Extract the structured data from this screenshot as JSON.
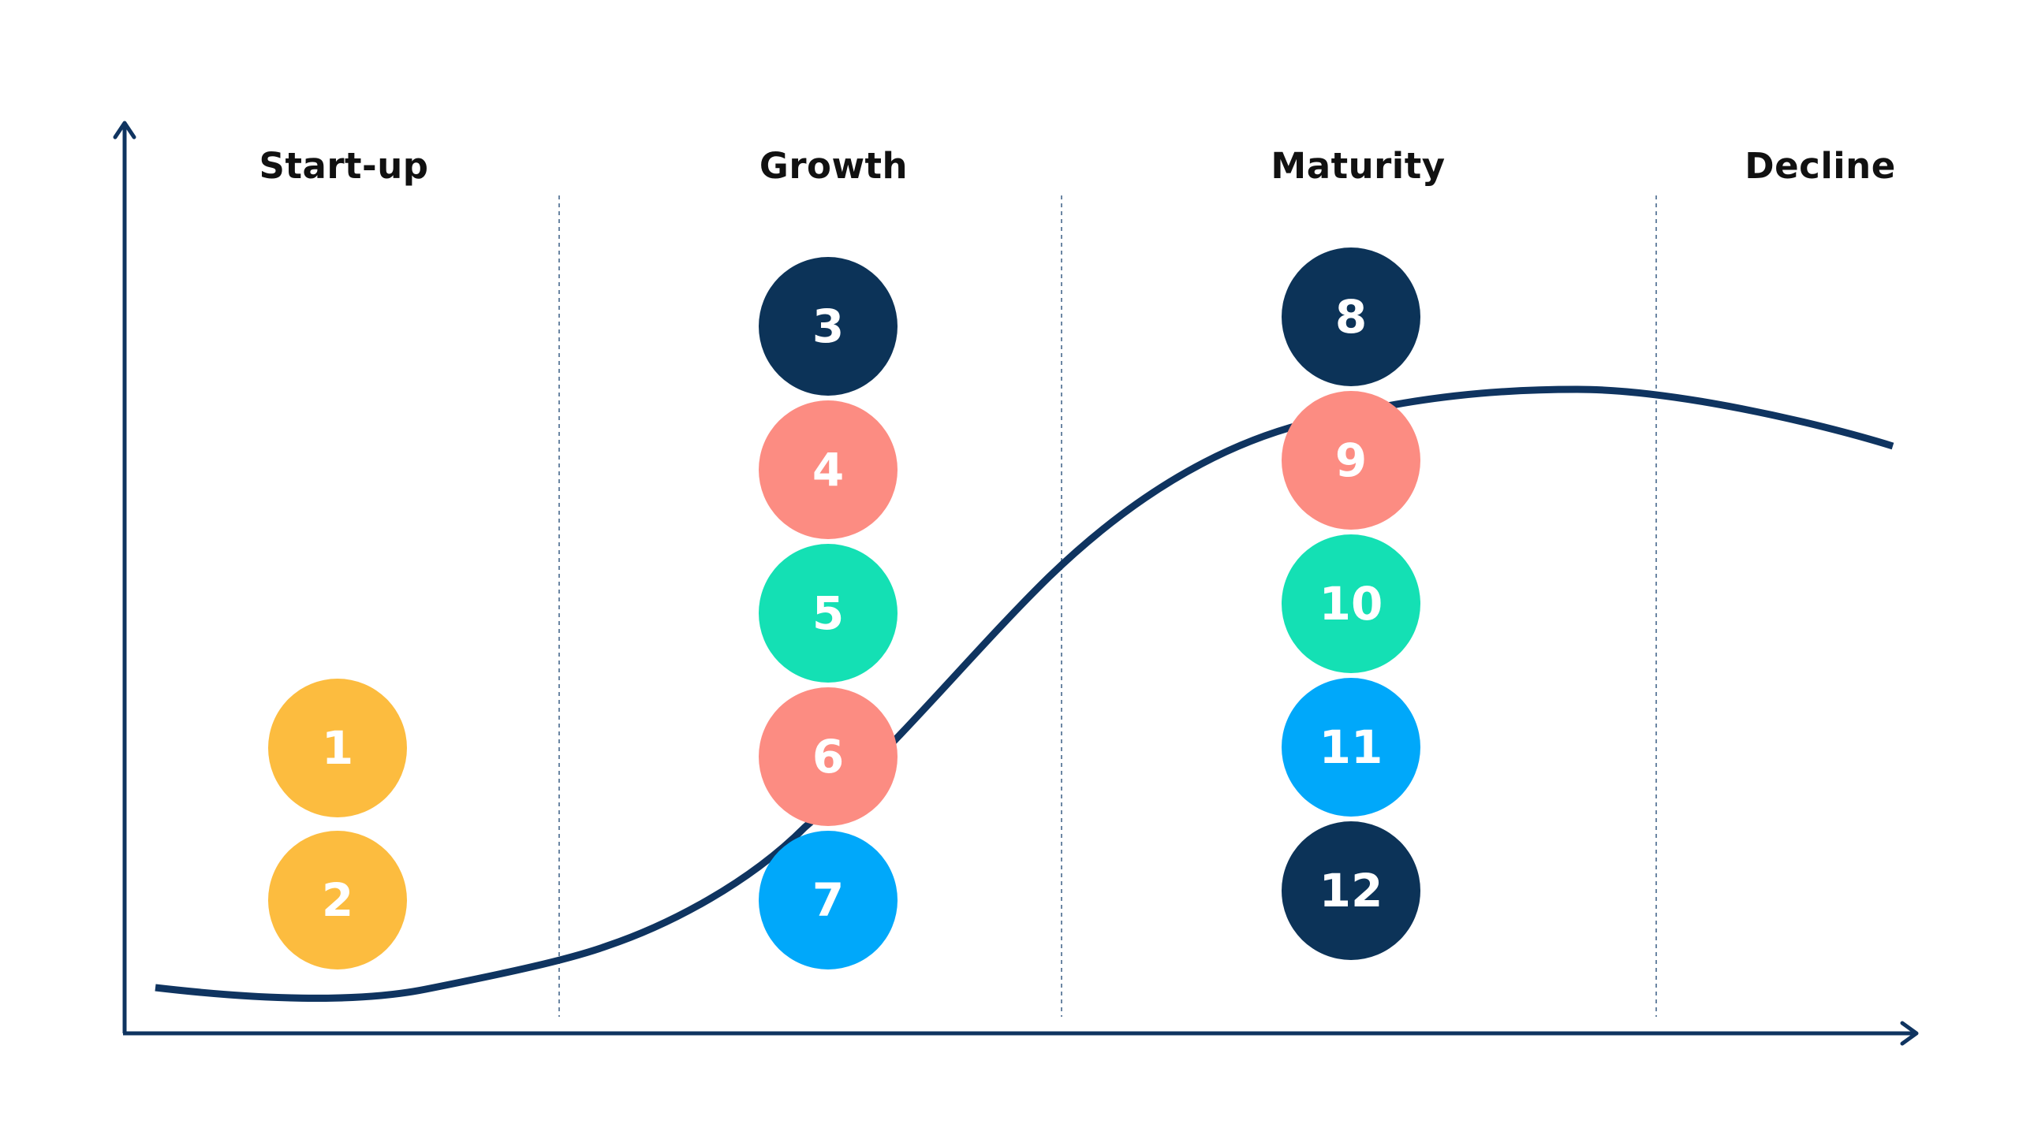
{
  "stages": [
    {
      "label": "Start-up"
    },
    {
      "label": "Growth"
    },
    {
      "label": "Maturity"
    },
    {
      "label": "Decline"
    }
  ],
  "colors": {
    "axis": "#0f3460",
    "curve": "#0f3460",
    "divider": "#6b86a3",
    "navy": "#0c3358",
    "yellow": "#fcbc3f",
    "salmon": "#fc8c82",
    "teal": "#14e0b4",
    "blue": "#00a8fa"
  },
  "markers": [
    {
      "label": "1",
      "color": "yellow",
      "stage": "Start-up"
    },
    {
      "label": "2",
      "color": "yellow",
      "stage": "Start-up"
    },
    {
      "label": "3",
      "color": "navy",
      "stage": "Growth"
    },
    {
      "label": "4",
      "color": "salmon",
      "stage": "Growth"
    },
    {
      "label": "5",
      "color": "teal",
      "stage": "Growth"
    },
    {
      "label": "6",
      "color": "salmon",
      "stage": "Growth"
    },
    {
      "label": "7",
      "color": "blue",
      "stage": "Growth"
    },
    {
      "label": "8",
      "color": "navy",
      "stage": "Maturity"
    },
    {
      "label": "9",
      "color": "salmon",
      "stage": "Maturity"
    },
    {
      "label": "10",
      "color": "teal",
      "stage": "Maturity"
    },
    {
      "label": "11",
      "color": "blue",
      "stage": "Maturity"
    },
    {
      "label": "12",
      "color": "navy",
      "stage": "Maturity"
    }
  ]
}
